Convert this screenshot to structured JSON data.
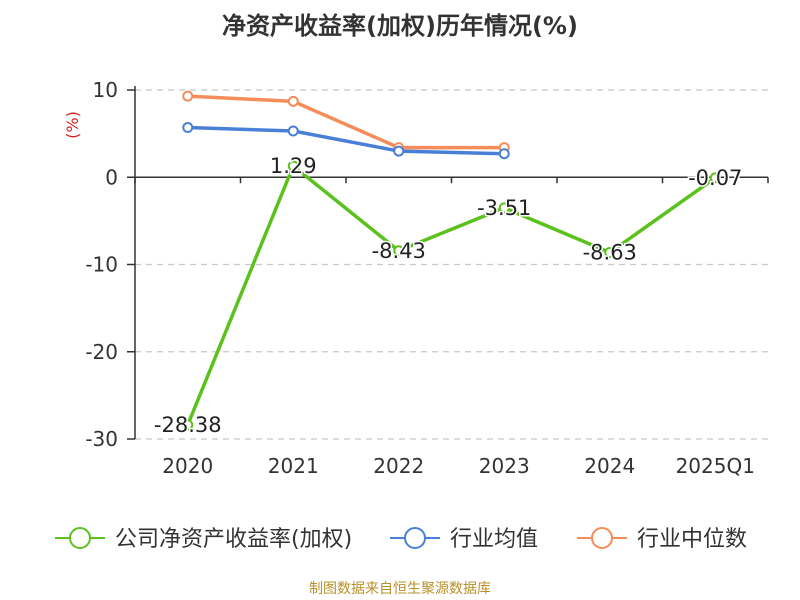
{
  "title": "净资产收益率(加权)历年情况(%)",
  "source": "制图数据来自恒生聚源数据库",
  "colors": {
    "company": "#5bc11c",
    "industry_avg": "#4a7fd8",
    "industry_median": "#f58c5a",
    "unit": "#d22222"
  },
  "chart_data": {
    "type": "line",
    "title": "净资产收益率(加权)历年情况(%)",
    "ylabel": "(%)",
    "ylim": [
      -30,
      10
    ],
    "yticks": [
      10,
      0,
      -10,
      -20,
      -30
    ],
    "grid": true,
    "legend_position": "bottom",
    "categories": [
      "2020",
      "2021",
      "2022",
      "2023",
      "2024",
      "2025Q1"
    ],
    "series": [
      {
        "name": "公司净资产收益率(加权)",
        "color": "#5bc11c",
        "values": [
          -28.38,
          1.29,
          -8.43,
          -3.51,
          -8.63,
          -0.07
        ],
        "labels": [
          "-28.38",
          "1.29",
          "-8.43",
          "-3.51",
          "-8.63",
          "-0.07"
        ]
      },
      {
        "name": "行业均值",
        "color": "#4a7fd8",
        "values": [
          5.7,
          5.3,
          3.0,
          2.7,
          null,
          null
        ]
      },
      {
        "name": "行业中位数",
        "color": "#f58c5a",
        "values": [
          9.3,
          8.7,
          3.4,
          3.4,
          null,
          null
        ]
      }
    ]
  }
}
